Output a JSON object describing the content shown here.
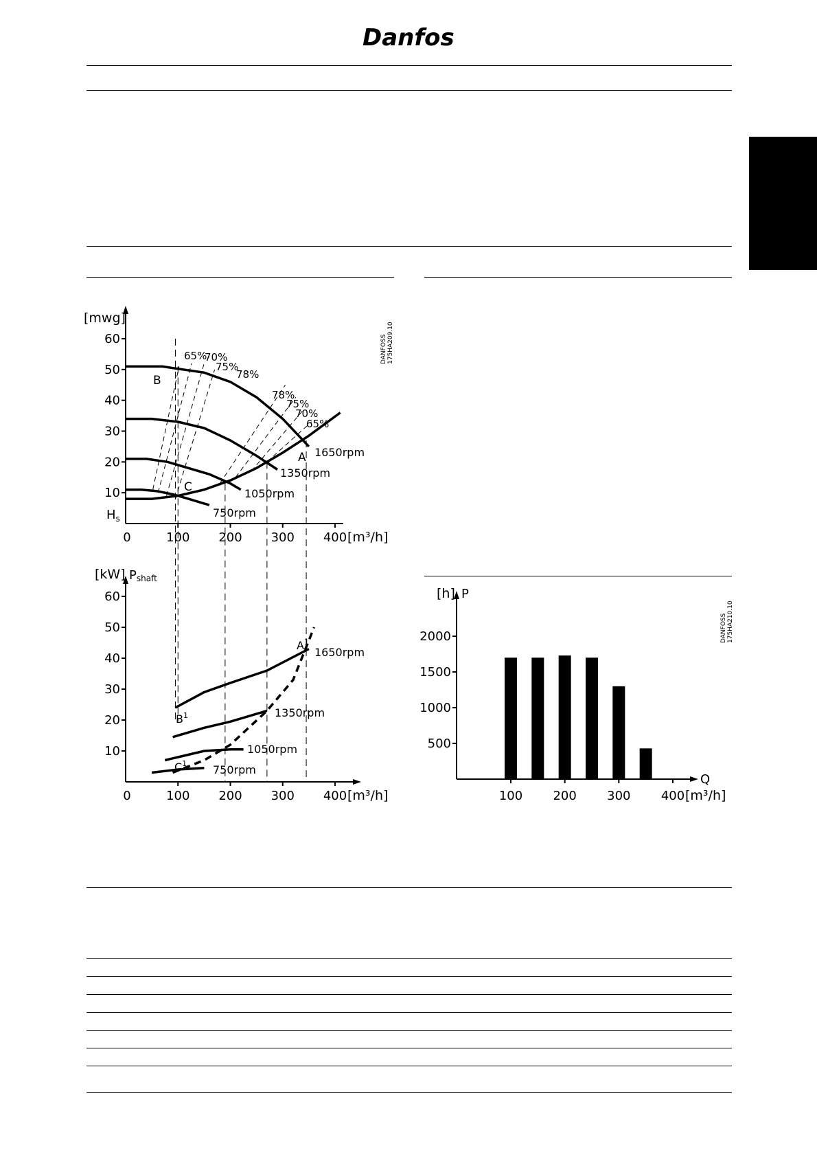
{
  "header": {
    "logo_text": "Danfoss"
  },
  "head_chart": {
    "y_unit": "[mwg]",
    "y_ticks": [
      "60",
      "50",
      "40",
      "30",
      "20",
      "10"
    ],
    "hs_label": "H",
    "hs_sub": "s",
    "x_ticks": [
      "0",
      "100",
      "200",
      "300",
      "400"
    ],
    "x_unit": "[m³/h]",
    "code_line1": "DANFOSS",
    "code_line2": "175HA209.10",
    "point_labels": {
      "A": "A",
      "B": "B",
      "C": "C"
    },
    "eff_labels_left": [
      "65%",
      "70%",
      "75%",
      "78%"
    ],
    "eff_labels_right": [
      "78%",
      "75%",
      "70%",
      "65%"
    ],
    "rpm_labels": [
      "1650rpm",
      "1350rpm",
      "1050rpm",
      "750rpm"
    ]
  },
  "power_chart": {
    "y_unit": "[kW]",
    "p_label": "P",
    "p_sub": "shaft",
    "y_ticks": [
      "60",
      "50",
      "40",
      "30",
      "20",
      "10"
    ],
    "x_ticks": [
      "0",
      "100",
      "200",
      "300",
      "400"
    ],
    "x_unit": "[m³/h]",
    "point_labels": {
      "A1": "A",
      "B1": "B",
      "C1": "C",
      "sup": "1"
    },
    "rpm_labels": [
      "1650rpm",
      "1350rpm",
      "1050rpm",
      "750rpm"
    ]
  },
  "chart_data": [
    {
      "type": "line",
      "title": "",
      "xlabel": "[m³/h]",
      "ylabel": "[mwg]",
      "xlim": [
        0,
        400
      ],
      "ylim": [
        0,
        60
      ],
      "series": [
        {
          "name": "1650rpm",
          "x": [
            0,
            70,
            150,
            200,
            250,
            300,
            350
          ],
          "y": [
            51,
            51,
            49,
            46,
            41,
            34,
            25
          ]
        },
        {
          "name": "1350rpm",
          "x": [
            0,
            50,
            100,
            150,
            200,
            250,
            290
          ],
          "y": [
            34,
            34,
            33,
            31,
            27,
            22,
            17.5
          ]
        },
        {
          "name": "1050rpm",
          "x": [
            0,
            40,
            80,
            120,
            160,
            200,
            220
          ],
          "y": [
            21,
            21,
            20,
            18,
            16,
            13,
            11
          ]
        },
        {
          "name": "750rpm",
          "x": [
            0,
            30,
            60,
            90,
            120,
            150,
            160
          ],
          "y": [
            11,
            11,
            10.5,
            9.5,
            8,
            6.5,
            6
          ]
        },
        {
          "name": "",
          "x": [
            0,
            50,
            100,
            150,
            200,
            250,
            300,
            350,
            410
          ],
          "y": [
            8,
            8,
            9,
            11,
            14,
            18,
            23,
            28.5,
            36
          ]
        }
      ]
    },
    {
      "type": "line",
      "title": "",
      "xlabel": "[m³/h]",
      "ylabel": "[kW]",
      "xlim": [
        0,
        400
      ],
      "ylim": [
        0,
        60
      ],
      "series": [
        {
          "name": "1650rpm",
          "x": [
            95,
            150,
            200,
            270,
            350
          ],
          "y": [
            24,
            29,
            32,
            36,
            43
          ]
        },
        {
          "name": "1350rpm",
          "x": [
            90,
            150,
            200,
            270
          ],
          "y": [
            14.5,
            17.5,
            19.5,
            23
          ]
        },
        {
          "name": "1050rpm",
          "x": [
            75,
            100,
            150,
            200,
            225
          ],
          "y": [
            7,
            8,
            10,
            10.5,
            10.5
          ]
        },
        {
          "name": "750rpm",
          "x": [
            50,
            100,
            150
          ],
          "y": [
            3,
            4,
            4.5
          ]
        },
        {
          "name": "",
          "x": [
            90,
            150,
            200,
            270,
            320,
            360
          ],
          "y": [
            3,
            7,
            12,
            23,
            33,
            50
          ]
        }
      ]
    },
    {
      "type": "bar",
      "title": "",
      "xlabel": "[m³/h]",
      "ylabel": "[h]",
      "xlim": [
        0,
        400
      ],
      "ylim": [
        0,
        2400
      ],
      "x_axis_label": "Q",
      "y_axis_label": "P",
      "code_line1": "DANFOSS",
      "code_line2": "175HA210.10",
      "y_ticks": [
        "2000",
        "1500",
        "1000",
        "500"
      ],
      "x_ticks": [
        "100",
        "200",
        "300",
        "400"
      ],
      "categories": [
        "100",
        "150",
        "200",
        "250",
        "300",
        "350"
      ],
      "values": [
        1700,
        1700,
        1730,
        1700,
        1300,
        430
      ]
    }
  ]
}
